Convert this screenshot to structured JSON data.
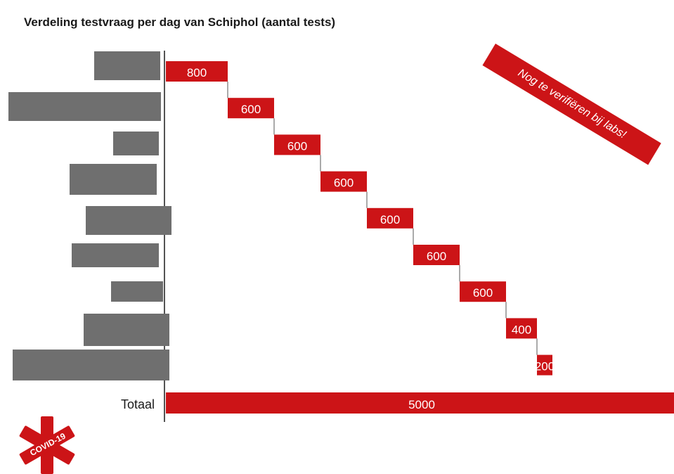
{
  "header": {
    "title": "Verdeling testvraag per dag van Schiphol (aantal tests)"
  },
  "badge": {
    "text": "Nog te verifiëren bij labs!"
  },
  "logo": {
    "text": "COVID-19",
    "icon": "covid-star-of-life-icon"
  },
  "colors": {
    "accent": "#cc1417",
    "gray": "#6f6f6f",
    "axis": "#1a1a1a"
  },
  "chart_data": {
    "type": "waterfall",
    "title": "Verdeling testvraag per dag van Schiphol (aantal tests)",
    "categories": [
      "",
      "",
      "",
      "",
      "",
      "",
      "",
      "",
      ""
    ],
    "values": [
      800,
      600,
      600,
      600,
      600,
      600,
      600,
      400,
      200
    ],
    "data_labels": [
      "800",
      "600",
      "600",
      "600",
      "600",
      "600",
      "600",
      "400",
      "200"
    ],
    "total": {
      "label": "Totaal",
      "value": 5000,
      "data_label": "5000"
    },
    "left_gray_bars": "unlabeled",
    "annotation": "Nog te verifiëren bij labs!"
  }
}
